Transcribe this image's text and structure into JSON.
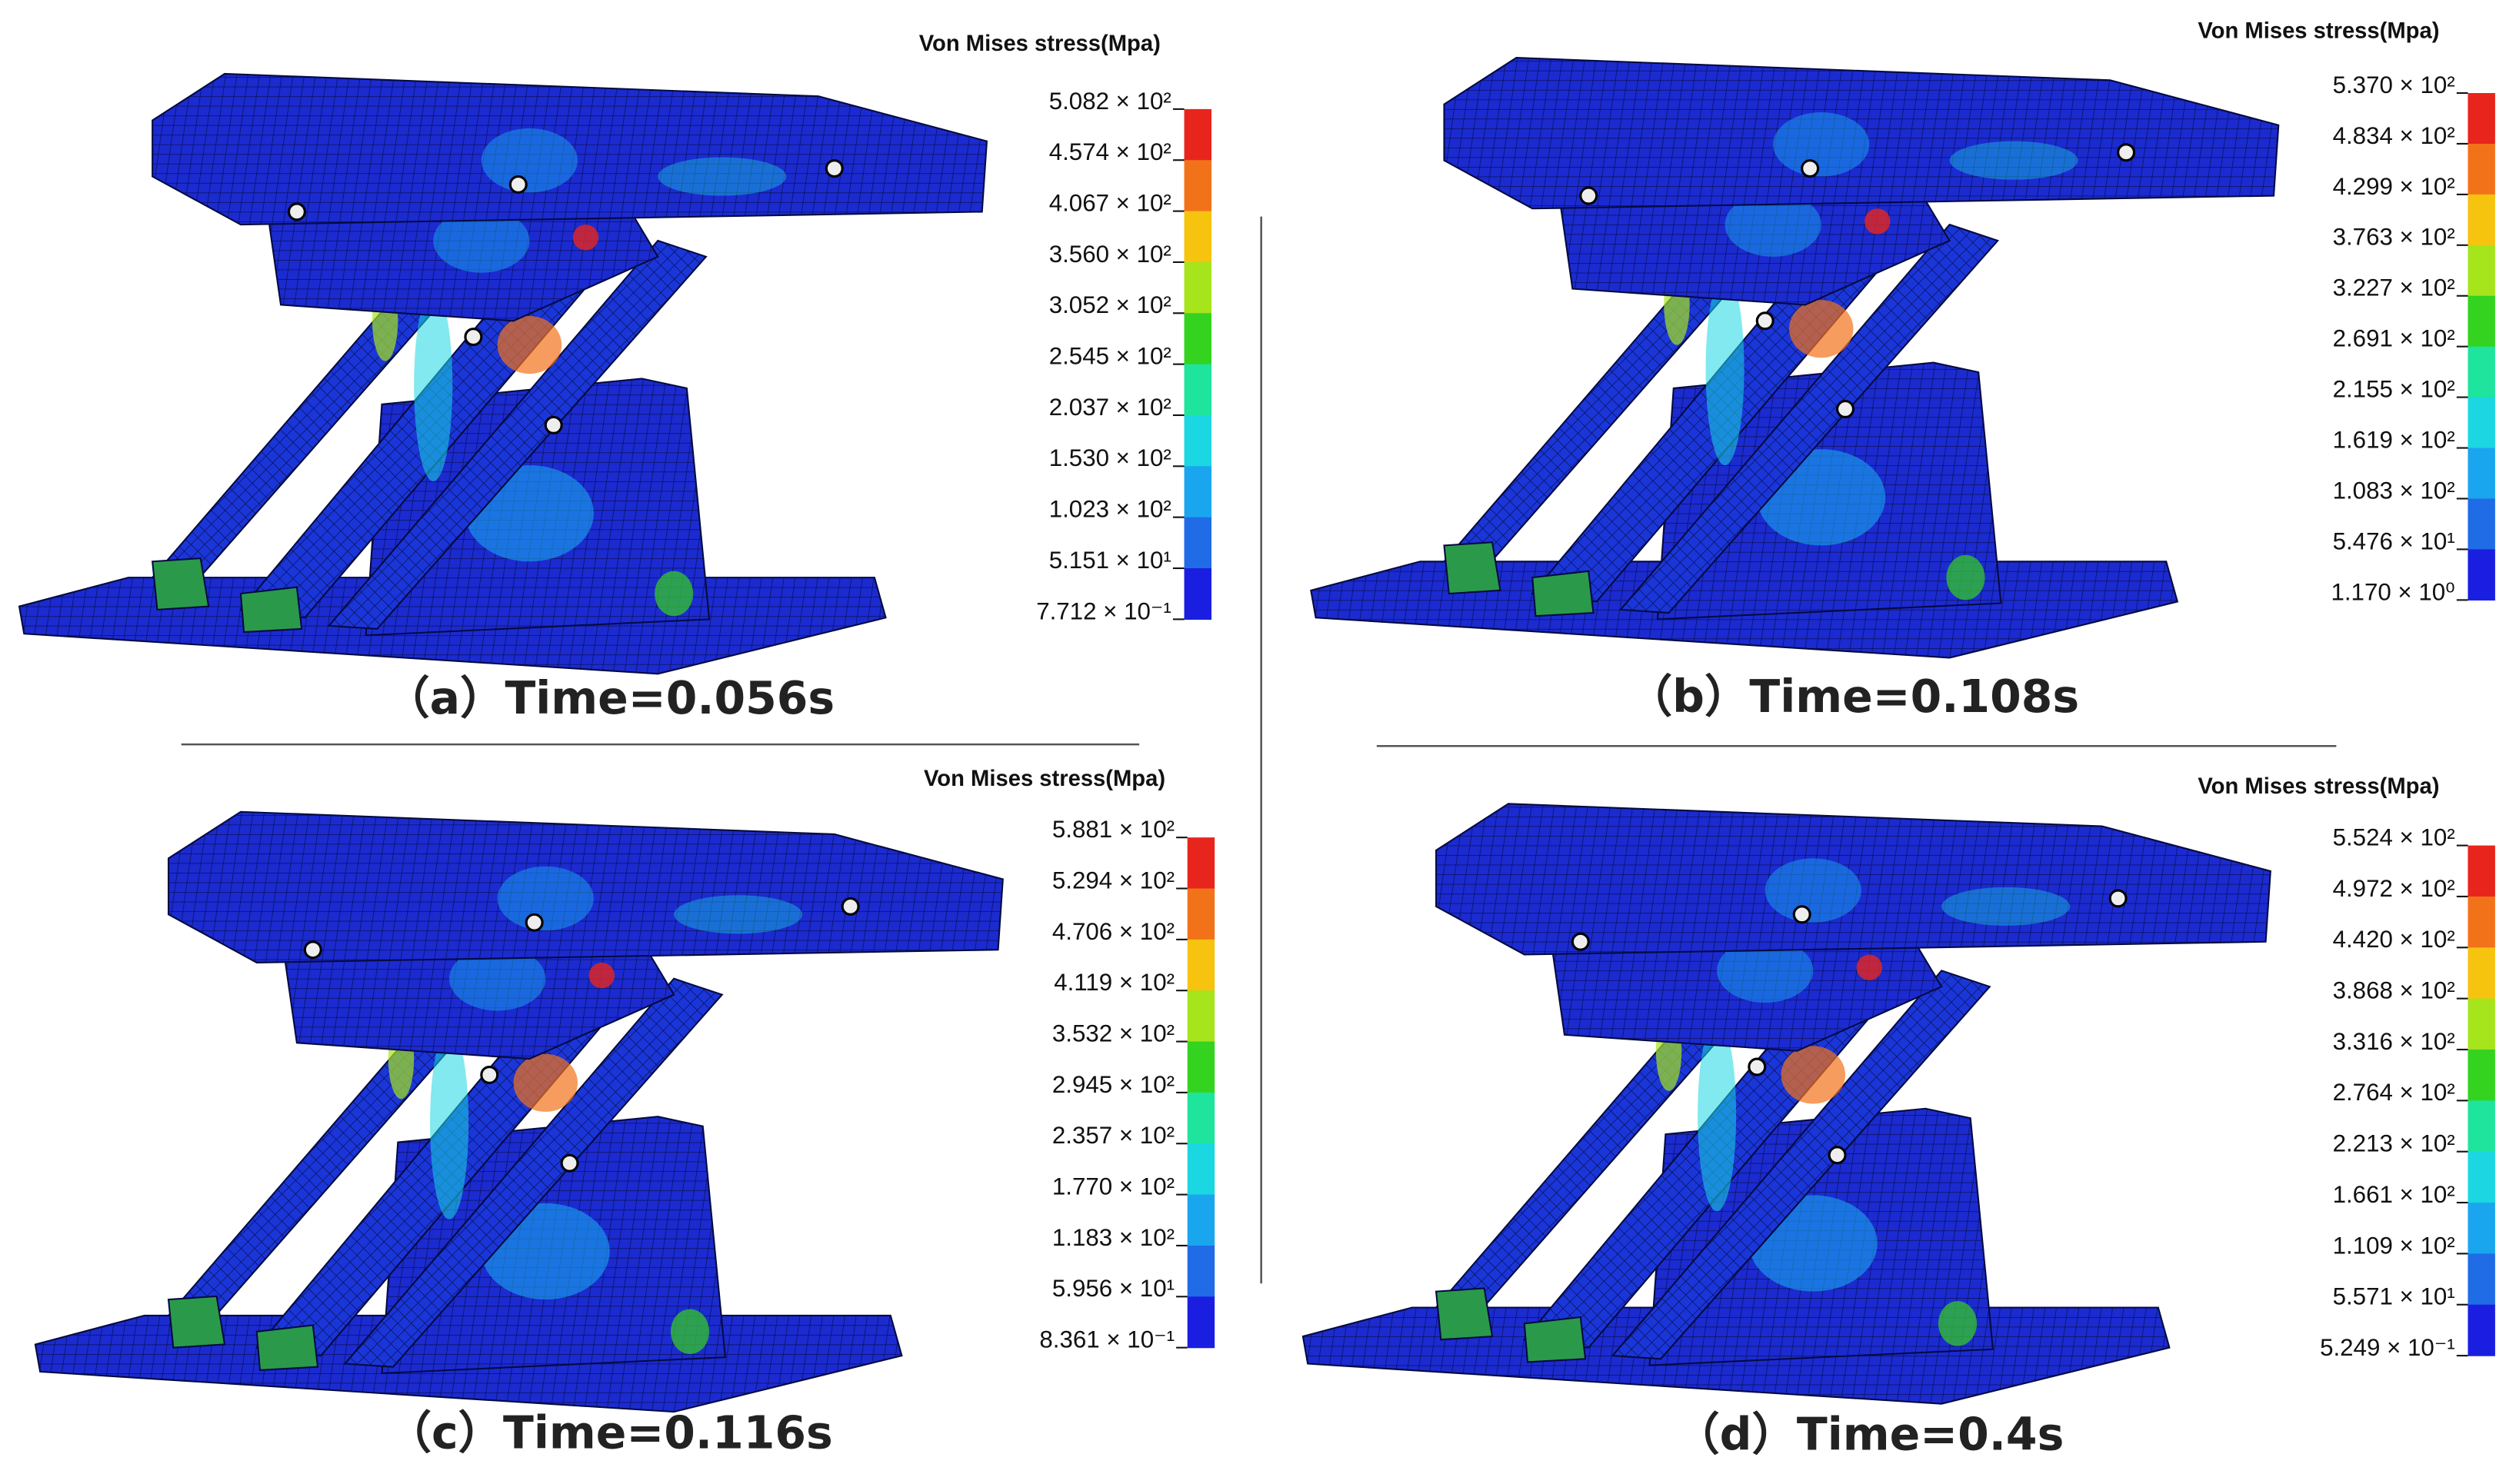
{
  "panels": [
    {
      "legend_title": "Von Mises stress(Mpa)",
      "legend_labels": [
        "5.082 × 10²",
        "4.574 × 10²",
        "4.067 × 10²",
        "3.560 × 10²",
        "3.052 × 10²",
        "2.545 × 10²",
        "2.037 × 10²",
        "1.530 × 10²",
        "1.023 × 10²",
        "5.151 × 10¹",
        "7.712 × 10⁻¹"
      ],
      "caption": "（a）Time=0.056s"
    },
    {
      "legend_title": "Von Mises stress(Mpa)",
      "legend_labels": [
        "5.370 × 10²",
        "4.834 × 10²",
        "4.299 × 10²",
        "3.763 × 10²",
        "3.227 × 10²",
        "2.691 × 10²",
        "2.155 × 10²",
        "1.619 × 10²",
        "1.083 × 10²",
        "5.476 × 10¹",
        "1.170 × 10⁰"
      ],
      "caption": "（b）Time=0.108s"
    },
    {
      "legend_title": "Von Mises stress(Mpa)",
      "legend_labels": [
        "5.881 × 10²",
        "5.294 × 10²",
        "4.706 × 10²",
        "4.119 × 10²",
        "3.532 × 10²",
        "2.945 × 10²",
        "2.357 × 10²",
        "1.770 × 10²",
        "1.183 × 10²",
        "5.956 × 10¹",
        "8.361 × 10⁻¹"
      ],
      "caption": "（c）Time=0.116s"
    },
    {
      "legend_title": "Von Mises stress(Mpa)",
      "legend_labels": [
        "5.524 × 10²",
        "4.972 × 10²",
        "4.420 × 10²",
        "3.868 × 10²",
        "3.316 × 10²",
        "2.764 × 10²",
        "2.213 × 10²",
        "1.661 × 10²",
        "1.109 × 10²",
        "5.571 × 10¹",
        "5.249 × 10⁻¹"
      ],
      "caption": "（d）Time=0.4s"
    }
  ]
}
